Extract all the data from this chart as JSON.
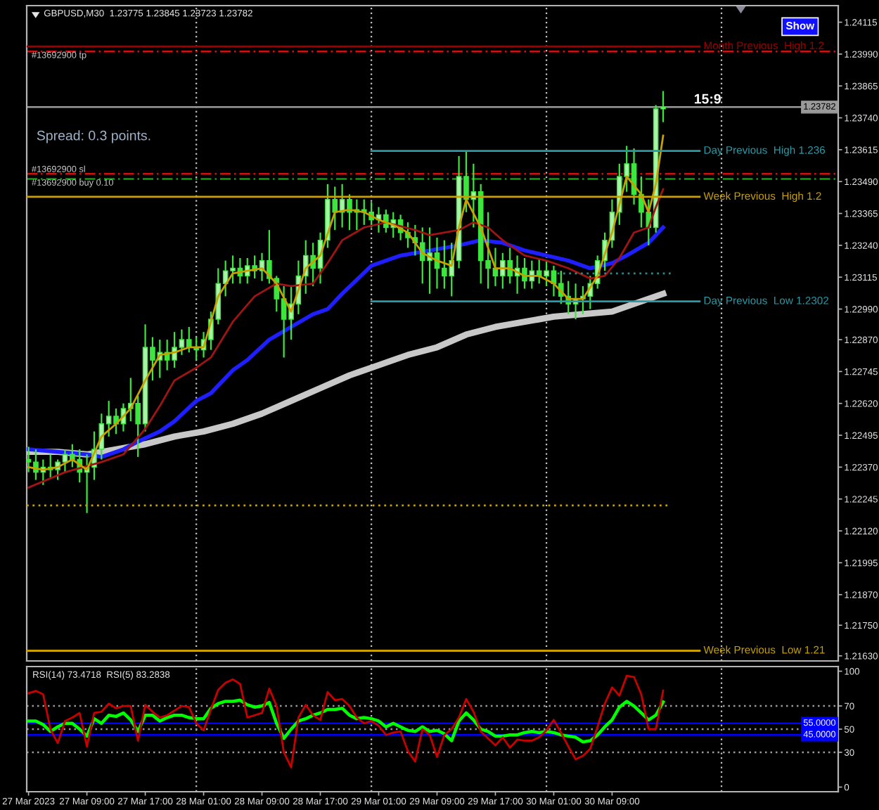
{
  "chart_data": [
    {
      "type": "candlestick",
      "title": "GBPUSD,M30  1.23775 1.23845 1.23723 1.23782",
      "color": "#3ce63c",
      "x": [
        "2023-03-27T01:00",
        "2023-03-27T02:00",
        "2023-03-27T03:00",
        "2023-03-27T04:00",
        "2023-03-27T05:00",
        "2023-03-27T06:00",
        "2023-03-27T07:00",
        "2023-03-27T08:00",
        "2023-03-27T09:00",
        "2023-03-27T10:00",
        "2023-03-27T11:00",
        "2023-03-27T12:00",
        "2023-03-27T13:00",
        "2023-03-27T14:00",
        "2023-03-27T15:00",
        "2023-03-27T16:00",
        "2023-03-27T17:00",
        "2023-03-27T18:00",
        "2023-03-27T19:00",
        "2023-03-27T20:00",
        "2023-03-27T21:00",
        "2023-03-27T22:00",
        "2023-03-27T23:00",
        "2023-03-28T00:00",
        "2023-03-28T01:00",
        "2023-03-28T02:00",
        "2023-03-28T03:00",
        "2023-03-28T04:00",
        "2023-03-28T05:00",
        "2023-03-28T06:00",
        "2023-03-28T07:00",
        "2023-03-28T08:00",
        "2023-03-28T09:00",
        "2023-03-28T10:00",
        "2023-03-28T11:00",
        "2023-03-28T12:00",
        "2023-03-28T13:00",
        "2023-03-28T14:00",
        "2023-03-28T15:00",
        "2023-03-28T16:00",
        "2023-03-28T17:00",
        "2023-03-28T18:00",
        "2023-03-28T19:00",
        "2023-03-28T20:00",
        "2023-03-28T21:00",
        "2023-03-28T22:00",
        "2023-03-28T23:00",
        "2023-03-29T00:00",
        "2023-03-29T01:00",
        "2023-03-29T02:00",
        "2023-03-29T03:00",
        "2023-03-29T04:00",
        "2023-03-29T05:00",
        "2023-03-29T06:00",
        "2023-03-29T07:00",
        "2023-03-29T08:00",
        "2023-03-29T09:00",
        "2023-03-29T10:00",
        "2023-03-29T11:00",
        "2023-03-29T12:00",
        "2023-03-29T13:00",
        "2023-03-29T14:00",
        "2023-03-29T15:00",
        "2023-03-29T16:00",
        "2023-03-29T17:00",
        "2023-03-29T18:00",
        "2023-03-29T19:00",
        "2023-03-29T20:00",
        "2023-03-29T21:00",
        "2023-03-29T22:00",
        "2023-03-29T23:00",
        "2023-03-30T00:00",
        "2023-03-30T01:00",
        "2023-03-30T02:00",
        "2023-03-30T03:00",
        "2023-03-30T04:00",
        "2023-03-30T05:00",
        "2023-03-30T06:00",
        "2023-03-30T07:00",
        "2023-03-30T08:00",
        "2023-03-30T09:00",
        "2023-03-30T10:00",
        "2023-03-30T11:00",
        "2023-03-30T12:00",
        "2023-03-30T13:00",
        "2023-03-30T14:00",
        "2023-03-30T15:00",
        "2023-03-30T16:00"
      ],
      "ohlc": [
        [
          1.224,
          1.2245,
          1.2235,
          1.2239
        ],
        [
          1.2239,
          1.2244,
          1.2232,
          1.2235
        ],
        [
          1.2235,
          1.224,
          1.223,
          1.2237
        ],
        [
          1.2237,
          1.2242,
          1.2233,
          1.2236
        ],
        [
          1.2236,
          1.224,
          1.2232,
          1.2239
        ],
        [
          1.2239,
          1.2244,
          1.2235,
          1.2242
        ],
        [
          1.2242,
          1.2246,
          1.2237,
          1.224
        ],
        [
          1.224,
          1.2244,
          1.2231,
          1.2235
        ],
        [
          1.2235,
          1.2242,
          1.2219,
          1.2237
        ],
        [
          1.2237,
          1.2251,
          1.2232,
          1.2244
        ],
        [
          1.2244,
          1.2258,
          1.224,
          1.2254
        ],
        [
          1.2254,
          1.2263,
          1.2249,
          1.2257
        ],
        [
          1.2257,
          1.226,
          1.225,
          1.2254
        ],
        [
          1.2254,
          1.2262,
          1.2251,
          1.226
        ],
        [
          1.226,
          1.2272,
          1.2255,
          1.2262
        ],
        [
          1.2262,
          1.2265,
          1.2241,
          1.2254
        ],
        [
          1.2254,
          1.2293,
          1.2251,
          1.2284
        ],
        [
          1.2284,
          1.2288,
          1.2271,
          1.2279
        ],
        [
          1.2279,
          1.2287,
          1.2272,
          1.2282
        ],
        [
          1.2282,
          1.2287,
          1.2275,
          1.2279
        ],
        [
          1.2279,
          1.229,
          1.2276,
          1.2284
        ],
        [
          1.2284,
          1.2291,
          1.2281,
          1.2287
        ],
        [
          1.2287,
          1.2292,
          1.2282,
          1.2284
        ],
        [
          1.2284,
          1.2288,
          1.2279,
          1.2283
        ],
        [
          1.2283,
          1.229,
          1.228,
          1.2287
        ],
        [
          1.2287,
          1.2298,
          1.2283,
          1.2295
        ],
        [
          1.2295,
          1.2315,
          1.2293,
          1.2309
        ],
        [
          1.2309,
          1.2318,
          1.2304,
          1.2314
        ],
        [
          1.2314,
          1.232,
          1.2309,
          1.2315
        ],
        [
          1.2315,
          1.2319,
          1.2309,
          1.2312
        ],
        [
          1.2312,
          1.2319,
          1.2309,
          1.2316
        ],
        [
          1.2316,
          1.232,
          1.2311,
          1.2314
        ],
        [
          1.2314,
          1.2321,
          1.231,
          1.2318
        ],
        [
          1.2318,
          1.233,
          1.2309,
          1.2311
        ],
        [
          1.2311,
          1.2312,
          1.2298,
          1.2303
        ],
        [
          1.2303,
          1.2308,
          1.228,
          1.2295
        ],
        [
          1.2295,
          1.2308,
          1.2287,
          1.2301
        ],
        [
          1.2301,
          1.2318,
          1.2297,
          1.2312
        ],
        [
          1.2312,
          1.2326,
          1.2305,
          1.232
        ],
        [
          1.232,
          1.2325,
          1.2308,
          1.2315
        ],
        [
          1.2315,
          1.2329,
          1.2309,
          1.2326
        ],
        [
          1.2326,
          1.2348,
          1.2323,
          1.2342
        ],
        [
          1.2342,
          1.2347,
          1.233,
          1.2337
        ],
        [
          1.2337,
          1.2348,
          1.2331,
          1.2342
        ],
        [
          1.2342,
          1.2344,
          1.233,
          1.2337
        ],
        [
          1.2337,
          1.2342,
          1.233,
          1.2338
        ],
        [
          1.2338,
          1.2342,
          1.2332,
          1.2337
        ],
        [
          1.2337,
          1.2341,
          1.2331,
          1.2334
        ],
        [
          1.2334,
          1.2339,
          1.2329,
          1.2336
        ],
        [
          1.2336,
          1.2338,
          1.2329,
          1.2331
        ],
        [
          1.2331,
          1.2337,
          1.2327,
          1.2334
        ],
        [
          1.2334,
          1.2336,
          1.2326,
          1.2329
        ],
        [
          1.2329,
          1.2333,
          1.2323,
          1.2327
        ],
        [
          1.2327,
          1.2332,
          1.232,
          1.2325
        ],
        [
          1.2325,
          1.2331,
          1.2309,
          1.2318
        ],
        [
          1.2318,
          1.2331,
          1.2305,
          1.2321
        ],
        [
          1.2321,
          1.2327,
          1.2307,
          1.2315
        ],
        [
          1.2315,
          1.2326,
          1.2307,
          1.2312
        ],
        [
          1.2312,
          1.2325,
          1.2304,
          1.2318
        ],
        [
          1.2318,
          1.2359,
          1.2315,
          1.2351
        ],
        [
          1.2351,
          1.2361,
          1.2337,
          1.2342
        ],
        [
          1.2342,
          1.2356,
          1.2331,
          1.2345
        ],
        [
          1.2345,
          1.2348,
          1.2309,
          1.2318
        ],
        [
          1.2318,
          1.2337,
          1.2307,
          1.2315
        ],
        [
          1.2315,
          1.2323,
          1.2308,
          1.2312
        ],
        [
          1.2312,
          1.2321,
          1.2307,
          1.2318
        ],
        [
          1.2318,
          1.2323,
          1.2309,
          1.2312
        ],
        [
          1.2312,
          1.232,
          1.2305,
          1.2315
        ],
        [
          1.2315,
          1.2319,
          1.2307,
          1.231
        ],
        [
          1.231,
          1.2318,
          1.2307,
          1.2314
        ],
        [
          1.2314,
          1.2319,
          1.2309,
          1.2312
        ],
        [
          1.2312,
          1.2318,
          1.2308,
          1.2314
        ],
        [
          1.2314,
          1.2316,
          1.2304,
          1.2309
        ],
        [
          1.2309,
          1.2314,
          1.2301,
          1.2304
        ],
        [
          1.2304,
          1.231,
          1.2297,
          1.2301
        ],
        [
          1.2301,
          1.2309,
          1.2295,
          1.2303
        ],
        [
          1.2303,
          1.2308,
          1.2297,
          1.2304
        ],
        [
          1.2304,
          1.2312,
          1.2299,
          1.2309
        ],
        [
          1.2309,
          1.232,
          1.2307,
          1.2318
        ],
        [
          1.2318,
          1.2329,
          1.2314,
          1.2326
        ],
        [
          1.2326,
          1.2342,
          1.2323,
          1.2337
        ],
        [
          1.2337,
          1.2356,
          1.2332,
          1.2351
        ],
        [
          1.2351,
          1.2363,
          1.2345,
          1.2356
        ],
        [
          1.2356,
          1.2362,
          1.234,
          1.2344
        ],
        [
          1.2344,
          1.2351,
          1.2331,
          1.2337
        ],
        [
          1.2337,
          1.2342,
          1.2324,
          1.2331
        ],
        [
          1.2331,
          1.2379,
          1.2329,
          1.23775
        ],
        [
          1.23775,
          1.23845,
          1.23723,
          1.23782
        ]
      ],
      "series": [
        {
          "type": "line",
          "color": "#c8c8c8",
          "x": [
            "2023-03-27T01:00",
            "2023-03-27T05:00",
            "2023-03-27T09:00",
            "2023-03-27T13:00",
            "2023-03-27T17:00",
            "2023-03-27T21:00",
            "2023-03-28T01:00",
            "2023-03-28T05:00",
            "2023-03-28T09:00",
            "2023-03-28T13:00",
            "2023-03-28T17:00",
            "2023-03-28T21:00",
            "2023-03-29T01:00",
            "2023-03-29T05:00",
            "2023-03-29T09:00",
            "2023-03-29T13:00",
            "2023-03-29T17:00",
            "2023-03-29T21:00",
            "2023-03-30T01:00",
            "2023-03-30T05:00",
            "2023-03-30T09:00",
            "2023-03-30T13:00",
            "2023-03-30T16:00"
          ],
          "values": [
            1.2243,
            1.2243,
            1.2242,
            1.2244,
            1.2246,
            1.2249,
            1.2251,
            1.2254,
            1.2258,
            1.2263,
            1.2268,
            1.2273,
            1.2277,
            1.2281,
            1.2284,
            1.2289,
            1.2292,
            1.2294,
            1.2296,
            1.2297,
            1.2298,
            1.2302,
            1.2305
          ]
        },
        {
          "type": "line",
          "color": "#1e1eff",
          "x": [
            "2023-03-27T01:00",
            "2023-03-27T05:00",
            "2023-03-27T09:00",
            "2023-03-27T11:00",
            "2023-03-27T14:00",
            "2023-03-27T16:00",
            "2023-03-27T19:00",
            "2023-03-27T21:00",
            "2023-03-28T00:00",
            "2023-03-28T02:00",
            "2023-03-28T05:00",
            "2023-03-28T07:00",
            "2023-03-28T10:00",
            "2023-03-28T13:00",
            "2023-03-28T16:00",
            "2023-03-28T18:00",
            "2023-03-28T20:00",
            "2023-03-29T00:00",
            "2023-03-29T04:00",
            "2023-03-29T08:00",
            "2023-03-29T12:00",
            "2023-03-29T15:00",
            "2023-03-29T18:00",
            "2023-03-29T21:00",
            "2023-03-30T00:00",
            "2023-03-30T03:00",
            "2023-03-30T06:00",
            "2023-03-30T09:00",
            "2023-03-30T11:00",
            "2023-03-30T14:00",
            "2023-03-30T16:00"
          ],
          "values": [
            1.2244,
            1.2243,
            1.2242,
            1.2241,
            1.2244,
            1.2247,
            1.2251,
            1.2255,
            1.2263,
            1.2266,
            1.2275,
            1.2279,
            1.2287,
            1.2292,
            1.2297,
            1.2299,
            1.2305,
            1.2316,
            1.232,
            1.2322,
            1.2324,
            1.2326,
            1.2325,
            1.2322,
            1.232,
            1.2318,
            1.2315,
            1.2317,
            1.232,
            1.2325,
            1.2331
          ]
        },
        {
          "type": "line",
          "color": "#a01414",
          "x": [
            "2023-03-27T01:00",
            "2023-03-27T06:00",
            "2023-03-27T11:00",
            "2023-03-27T14:00",
            "2023-03-27T17:00",
            "2023-03-27T19:00",
            "2023-03-27T21:00",
            "2023-03-28T00:00",
            "2023-03-28T02:00",
            "2023-03-28T05:00",
            "2023-03-28T08:00",
            "2023-03-28T11:00",
            "2023-03-28T13:00",
            "2023-03-28T16:00",
            "2023-03-28T18:00",
            "2023-03-28T20:00",
            "2023-03-28T23:00",
            "2023-03-29T02:00",
            "2023-03-29T06:00",
            "2023-03-29T08:00",
            "2023-03-29T12:00",
            "2023-03-29T14:00",
            "2023-03-29T16:00",
            "2023-03-29T18:00",
            "2023-03-29T21:00",
            "2023-03-30T00:00",
            "2023-03-30T03:00",
            "2023-03-30T06:00",
            "2023-03-30T08:00",
            "2023-03-30T10:00",
            "2023-03-30T12:00",
            "2023-03-30T14:00",
            "2023-03-30T15:00",
            "2023-03-30T16:00"
          ],
          "values": [
            1.2229,
            1.2235,
            1.2239,
            1.2242,
            1.2252,
            1.2261,
            1.2271,
            1.2276,
            1.228,
            1.2294,
            1.2304,
            1.2309,
            1.2308,
            1.2309,
            1.2317,
            1.2326,
            1.2331,
            1.2333,
            1.233,
            1.2328,
            1.233,
            1.2333,
            1.2331,
            1.2326,
            1.232,
            1.2318,
            1.2315,
            1.2311,
            1.2312,
            1.2319,
            1.2329,
            1.2331,
            1.2339,
            1.2346
          ]
        },
        {
          "type": "line",
          "color": "#c8a000",
          "x": [
            "2023-03-27T01:00",
            "2023-03-27T03:00",
            "2023-03-27T05:00",
            "2023-03-27T07:00",
            "2023-03-27T09:00",
            "2023-03-27T11:00",
            "2023-03-27T13:00",
            "2023-03-27T15:00",
            "2023-03-27T17:00",
            "2023-03-27T19:00",
            "2023-03-27T21:00",
            "2023-03-27T23:00",
            "2023-03-28T01:00",
            "2023-03-28T03:00",
            "2023-03-28T05:00",
            "2023-03-28T07:00",
            "2023-03-28T09:00",
            "2023-03-28T11:00",
            "2023-03-28T13:00",
            "2023-03-28T15:00",
            "2023-03-28T17:00",
            "2023-03-28T19:00",
            "2023-03-28T21:00",
            "2023-03-28T23:00",
            "2023-03-29T01:00",
            "2023-03-29T03:00",
            "2023-03-29T05:00",
            "2023-03-29T07:00",
            "2023-03-29T09:00",
            "2023-03-29T11:00",
            "2023-03-29T12:00",
            "2023-03-29T13:00",
            "2023-03-29T15:00",
            "2023-03-29T17:00",
            "2023-03-29T19:00",
            "2023-03-29T21:00",
            "2023-03-29T23:00",
            "2023-03-30T01:00",
            "2023-03-30T03:00",
            "2023-03-30T05:00",
            "2023-03-30T07:00",
            "2023-03-30T09:00",
            "2023-03-30T11:00",
            "2023-03-30T13:00",
            "2023-03-30T14:00",
            "2023-03-30T15:00",
            "2023-03-30T16:00"
          ],
          "values": [
            1.2237,
            1.2236,
            1.2237,
            1.224,
            1.2236,
            1.2249,
            1.2254,
            1.226,
            1.2271,
            1.2281,
            1.2282,
            1.2284,
            1.2284,
            1.2304,
            1.2313,
            1.2314,
            1.2315,
            1.2309,
            1.2298,
            1.2315,
            1.232,
            1.2337,
            1.2338,
            1.2337,
            1.2334,
            1.2332,
            1.2329,
            1.2321,
            1.2318,
            1.2316,
            1.2331,
            1.2342,
            1.2331,
            1.2315,
            1.2315,
            1.2312,
            1.2312,
            1.2309,
            1.2303,
            1.2303,
            1.2312,
            1.2329,
            1.2351,
            1.2344,
            1.2337,
            1.2348,
            1.2367
          ]
        },
        {
          "type": "line",
          "name": "Month Previous  High 1.2",
          "color": "#9a0000",
          "x": [
            "2023-03-27T00:45",
            "2023-03-30T21:00"
          ],
          "values": [
            1.2402,
            1.2402
          ]
        },
        {
          "type": "line",
          "name": "Week Previous  High 1.2",
          "color": "#c8a000",
          "x": [
            "2023-03-27T00:45",
            "2023-03-30T21:00"
          ],
          "values": [
            1.2343,
            1.2343
          ]
        },
        {
          "type": "line",
          "name": "Week Previous  Low 1.21",
          "color": "#c8a000",
          "x": [
            "2023-03-27T00:45",
            "2023-03-30T21:00"
          ],
          "values": [
            1.2165,
            1.2165
          ]
        },
        {
          "type": "line",
          "name": "Day Previous  High 1.236",
          "color": "#2a9aa6",
          "x": [
            "2023-03-29T00:00",
            "2023-03-30T21:00"
          ],
          "values": [
            1.2361,
            1.2361
          ]
        },
        {
          "type": "line",
          "name": "Day Previous  Low 1.2302",
          "color": "#2a9aa6",
          "x": [
            "2023-03-29T00:00",
            "2023-03-30T21:00"
          ],
          "values": [
            1.2302,
            1.2302
          ]
        },
        {
          "type": "line",
          "color": "#2a8a8a",
          "line_style": "dotted",
          "x": [
            "2023-03-30T01:30",
            "2023-03-30T17:30"
          ],
          "values": [
            1.2313,
            1.2313
          ]
        },
        {
          "type": "line",
          "color": "#c8a000",
          "line_style": "dotted",
          "x": [
            "2023-03-27T00:45",
            "2023-03-30T17:00"
          ],
          "values": [
            1.2222,
            1.2222
          ]
        }
      ],
      "ref_lines": [
        {
          "axis": "x",
          "value": "2023-03-28T00:00",
          "color": "#c0c0c0",
          "line_style": "dotted"
        },
        {
          "axis": "x",
          "value": "2023-03-29T00:00",
          "color": "#c0c0c0",
          "line_style": "dotted"
        },
        {
          "axis": "x",
          "value": "2023-03-30T00:00",
          "color": "#c0c0c0",
          "line_style": "dotted"
        },
        {
          "axis": "x",
          "value": "2023-03-31T00:00",
          "color": "#c0c0c0",
          "line_style": "dotted"
        },
        {
          "axis": "y",
          "value": 1.24,
          "label": "#13692900 tp",
          "color": "#d01010",
          "line_style": "dashdot"
        },
        {
          "axis": "y",
          "value": 1.23782,
          "label": "1.23782",
          "color": "#9a9a9a",
          "line_style": "solid"
        },
        {
          "axis": "y",
          "value": 1.2352,
          "label": "#13692900 sl",
          "color": "#d01010",
          "line_style": "dashdot"
        },
        {
          "axis": "y",
          "value": 1.235,
          "label": "#13692900 buy 0.10",
          "color": "#10a010",
          "line_style": "dashdot"
        }
      ],
      "annotations": [
        "Spread: 0.3 points.",
        "15:9",
        "Show"
      ],
      "xlim": [
        "2023-03-27T00:45",
        "2023-03-31T16:00"
      ],
      "ylim": [
        1.2161,
        1.2418
      ],
      "yticks": [
        1.24115,
        {
          "value": 1.2399,
          "label": "1.23990"
        },
        1.23865,
        {
          "value": 1.2374,
          "label": "1.23740"
        },
        1.23615,
        {
          "value": 1.2349,
          "label": "1.23490"
        },
        1.23365,
        {
          "value": 1.2324,
          "label": "1.23240"
        },
        1.23115,
        {
          "value": 1.2299,
          "label": "1.22990"
        },
        {
          "value": 1.2287,
          "label": "1.22870"
        },
        1.22745,
        {
          "value": 1.2262,
          "label": "1.22620"
        },
        1.22495,
        {
          "value": 1.2237,
          "label": "1.22370"
        },
        1.22245,
        {
          "value": 1.2212,
          "label": "1.22120"
        },
        1.21995,
        {
          "value": 1.2187,
          "label": "1.21870"
        },
        {
          "value": 1.2175,
          "label": "1.21750"
        },
        {
          "value": 1.2163,
          "label": "1.21630"
        }
      ],
      "tick_labels": "y"
    },
    {
      "type": "line",
      "title": "RSI(14) 73.4718  RSI(5) 83.2838",
      "x": [
        "2023-03-27T01:00",
        "2023-03-27T02:00",
        "2023-03-27T03:00",
        "2023-03-27T04:00",
        "2023-03-27T05:00",
        "2023-03-27T06:00",
        "2023-03-27T07:00",
        "2023-03-27T08:00",
        "2023-03-27T09:00",
        "2023-03-27T10:00",
        "2023-03-27T11:00",
        "2023-03-27T12:00",
        "2023-03-27T13:00",
        "2023-03-27T14:00",
        "2023-03-27T15:00",
        "2023-03-27T16:00",
        "2023-03-27T17:00",
        "2023-03-27T18:00",
        "2023-03-27T19:00",
        "2023-03-27T20:00",
        "2023-03-27T21:00",
        "2023-03-27T22:00",
        "2023-03-27T23:00",
        "2023-03-28T00:00",
        "2023-03-28T01:00",
        "2023-03-28T02:00",
        "2023-03-28T03:00",
        "2023-03-28T04:00",
        "2023-03-28T05:00",
        "2023-03-28T06:00",
        "2023-03-28T07:00",
        "2023-03-28T08:00",
        "2023-03-28T09:00",
        "2023-03-28T10:00",
        "2023-03-28T11:00",
        "2023-03-28T12:00",
        "2023-03-28T13:00",
        "2023-03-28T14:00",
        "2023-03-28T15:00",
        "2023-03-28T16:00",
        "2023-03-28T17:00",
        "2023-03-28T18:00",
        "2023-03-28T19:00",
        "2023-03-28T20:00",
        "2023-03-28T21:00",
        "2023-03-28T22:00",
        "2023-03-28T23:00",
        "2023-03-29T00:00",
        "2023-03-29T01:00",
        "2023-03-29T02:00",
        "2023-03-29T03:00",
        "2023-03-29T04:00",
        "2023-03-29T05:00",
        "2023-03-29T06:00",
        "2023-03-29T07:00",
        "2023-03-29T08:00",
        "2023-03-29T09:00",
        "2023-03-29T10:00",
        "2023-03-29T11:00",
        "2023-03-29T12:00",
        "2023-03-29T13:00",
        "2023-03-29T14:00",
        "2023-03-29T15:00",
        "2023-03-29T16:00",
        "2023-03-29T17:00",
        "2023-03-29T18:00",
        "2023-03-29T19:00",
        "2023-03-29T20:00",
        "2023-03-29T21:00",
        "2023-03-29T22:00",
        "2023-03-29T23:00",
        "2023-03-30T00:00",
        "2023-03-30T01:00",
        "2023-03-30T02:00",
        "2023-03-30T03:00",
        "2023-03-30T04:00",
        "2023-03-30T05:00",
        "2023-03-30T06:00",
        "2023-03-30T07:00",
        "2023-03-30T08:00",
        "2023-03-30T09:00",
        "2023-03-30T10:00",
        "2023-03-30T11:00",
        "2023-03-30T12:00",
        "2023-03-30T13:00",
        "2023-03-30T14:00",
        "2023-03-30T15:00",
        "2023-03-30T16:00"
      ],
      "series": [
        {
          "color": "#00ff00",
          "values": [
            57,
            57,
            54,
            48,
            52,
            55,
            55,
            50,
            44,
            59,
            55,
            62,
            61,
            64,
            58,
            48,
            62,
            62,
            57,
            60,
            62,
            62,
            60,
            59,
            59,
            68,
            72,
            74,
            74,
            75,
            71,
            69,
            70,
            73,
            55,
            42,
            50,
            57,
            59,
            62,
            64,
            67,
            67,
            68,
            62,
            59,
            60,
            59,
            57,
            52,
            55,
            52,
            49,
            48,
            52,
            48,
            49,
            46,
            40,
            57,
            64,
            58,
            50,
            48,
            44,
            44,
            45,
            45,
            47,
            48,
            47,
            48,
            47,
            45,
            44,
            43,
            39,
            40,
            45,
            52,
            58,
            69,
            74,
            70,
            64,
            58,
            62,
            73.4718
          ]
        },
        {
          "color": "#c80000",
          "values": [
            81,
            83,
            80,
            50,
            38,
            57,
            60,
            64,
            35,
            64,
            65,
            72,
            68,
            70,
            70,
            40,
            71,
            65,
            60,
            62,
            66,
            70,
            69,
            55,
            49,
            67,
            84,
            90,
            93,
            89,
            60,
            62,
            64,
            85,
            70,
            30,
            17,
            60,
            71,
            62,
            58,
            82,
            75,
            76,
            70,
            60,
            55,
            57,
            53,
            45,
            47,
            48,
            31,
            22,
            50,
            45,
            26,
            45,
            50,
            60,
            76,
            65,
            48,
            42,
            36,
            43,
            34,
            41,
            40,
            40,
            43,
            49,
            58,
            47,
            35,
            24,
            27,
            33,
            52,
            72,
            86,
            79,
            96,
            95,
            80,
            50,
            50,
            83.2838
          ]
        }
      ],
      "ref_lines": [
        {
          "axis": "x",
          "value": "2023-03-28T00:00",
          "color": "#c0c0c0",
          "line_style": "dotted"
        },
        {
          "axis": "x",
          "value": "2023-03-29T00:00",
          "color": "#c0c0c0",
          "line_style": "dotted"
        },
        {
          "axis": "x",
          "value": "2023-03-30T00:00",
          "color": "#c0c0c0",
          "line_style": "dotted"
        },
        {
          "axis": "x",
          "value": "2023-03-31T00:00",
          "color": "#c0c0c0",
          "line_style": "dotted"
        },
        {
          "axis": "y",
          "value": 70,
          "color": "#9a9a9a",
          "line_style": "dotted"
        },
        {
          "axis": "y",
          "value": 50,
          "color": "#9a9a9a",
          "line_style": "dotted"
        },
        {
          "axis": "y",
          "value": 30,
          "color": "#9a9a9a",
          "line_style": "dotted"
        },
        {
          "axis": "y",
          "value": 55,
          "label": "55.0000",
          "color": "#0000ff",
          "line_style": "solid"
        },
        {
          "axis": "y",
          "value": 45,
          "label": "45.0000",
          "color": "#0000ff",
          "line_style": "solid"
        }
      ],
      "xlim": [
        "2023-03-27T00:45",
        "2023-03-31T16:00"
      ],
      "xticks": [
        {
          "value": "2023-03-27T01:00",
          "label": "27 Mar 2023"
        },
        {
          "value": "2023-03-27T09:00",
          "label": "27 Mar 09:00"
        },
        {
          "value": "2023-03-27T17:00",
          "label": "27 Mar 17:00"
        },
        {
          "value": "2023-03-28T01:00",
          "label": "28 Mar 01:00"
        },
        {
          "value": "2023-03-28T09:00",
          "label": "28 Mar 09:00"
        },
        {
          "value": "2023-03-28T17:00",
          "label": "28 Mar 17:00"
        },
        {
          "value": "2023-03-29T01:00",
          "label": "29 Mar 01:00"
        },
        {
          "value": "2023-03-29T09:00",
          "label": "29 Mar 09:00"
        },
        {
          "value": "2023-03-29T17:00",
          "label": "29 Mar 17:00"
        },
        {
          "value": "2023-03-30T01:00",
          "label": "30 Mar 01:00"
        },
        {
          "value": "2023-03-30T09:00",
          "label": "30 Mar 09:00"
        }
      ],
      "ylim": [
        -4,
        104
      ],
      "yticks": [
        0,
        30,
        50,
        70,
        100
      ]
    }
  ]
}
